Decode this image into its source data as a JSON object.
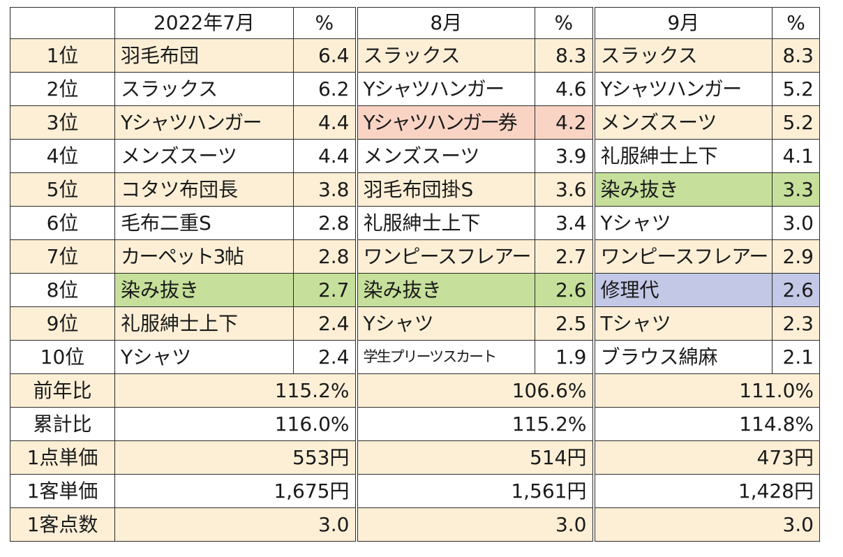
{
  "header": {
    "blank": "",
    "m1": "2022年7月",
    "m2": "8月",
    "m3": "9月",
    "pct": "%"
  },
  "ranking": [
    {
      "rank": "1位",
      "m1_item": "羽毛布団",
      "m1_pct": "6.4",
      "m2_item": "スラックス",
      "m2_pct": "8.3",
      "m3_item": "スラックス",
      "m3_pct": "8.3"
    },
    {
      "rank": "2位",
      "m1_item": "スラックス",
      "m1_pct": "6.2",
      "m2_item": "Yシャツハンガー",
      "m2_pct": "4.6",
      "m3_item": "Yシャツハンガー",
      "m3_pct": "5.2"
    },
    {
      "rank": "3位",
      "m1_item": "Yシャツハンガー",
      "m1_pct": "4.4",
      "m2_item": "Yシャツハンガー券",
      "m2_pct": "4.2",
      "m3_item": "メンズスーツ",
      "m3_pct": "5.2"
    },
    {
      "rank": "4位",
      "m1_item": "メンズスーツ",
      "m1_pct": "4.4",
      "m2_item": "メンズスーツ",
      "m2_pct": "3.9",
      "m3_item": "礼服紳士上下",
      "m3_pct": "4.1"
    },
    {
      "rank": "5位",
      "m1_item": "コタツ布団長",
      "m1_pct": "3.8",
      "m2_item": "羽毛布団掛S",
      "m2_pct": "3.6",
      "m3_item": "染み抜き",
      "m3_pct": "3.3"
    },
    {
      "rank": "6位",
      "m1_item": "毛布二重S",
      "m1_pct": "2.8",
      "m2_item": "礼服紳士上下",
      "m2_pct": "3.4",
      "m3_item": "Yシャツ",
      "m3_pct": "3.0"
    },
    {
      "rank": "7位",
      "m1_item": "カーペット3帖",
      "m1_pct": "2.8",
      "m2_item": "ワンピースフレアー",
      "m2_pct": "2.7",
      "m3_item": "ワンピースフレアー",
      "m3_pct": "2.9"
    },
    {
      "rank": "8位",
      "m1_item": "染み抜き",
      "m1_pct": "2.7",
      "m2_item": "染み抜き",
      "m2_pct": "2.6",
      "m3_item": "修理代",
      "m3_pct": "2.6"
    },
    {
      "rank": "9位",
      "m1_item": "礼服紳士上下",
      "m1_pct": "2.4",
      "m2_item": "Yシャツ",
      "m2_pct": "2.5",
      "m3_item": "Tシャツ",
      "m3_pct": "2.3"
    },
    {
      "rank": "10位",
      "m1_item": "Yシャツ",
      "m1_pct": "2.4",
      "m2_item": "学生プリーツスカート",
      "m2_pct": "1.9",
      "m3_item": "ブラウス綿麻",
      "m3_pct": "2.1"
    }
  ],
  "summary": [
    {
      "label": "前年比",
      "m1": "115.2%",
      "m2": "106.6%",
      "m3": "111.0%"
    },
    {
      "label": "累計比",
      "m1": "116.0%",
      "m2": "115.2%",
      "m3": "114.8%"
    },
    {
      "label": "1点単価",
      "m1": "553円",
      "m2": "514円",
      "m3": "473円"
    },
    {
      "label": "1客単価",
      "m1": "1,675円",
      "m2": "1,561円",
      "m3": "1,428円"
    },
    {
      "label": "1客点数",
      "m1": "3.0",
      "m2": "3.0",
      "m3": "3.0"
    }
  ],
  "highlight_colors": {
    "row_alt": "#fcefd6",
    "stain_removal_green": "#c6df9a",
    "hanger_ticket_pink": "#f9d4c4",
    "repair_blue": "#c3c8e6"
  }
}
